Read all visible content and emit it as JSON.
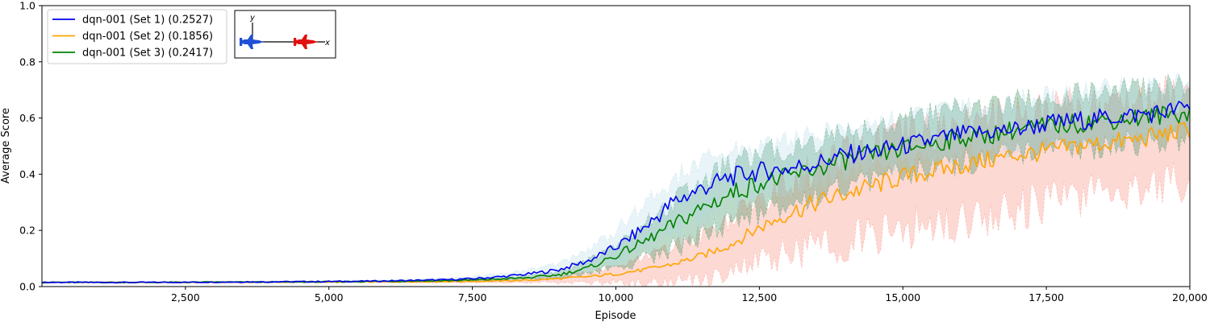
{
  "chart_data": {
    "type": "line",
    "title": "",
    "xlabel": "Episode",
    "ylabel": "Average Score",
    "xlim": [
      0,
      20000
    ],
    "ylim": [
      0,
      1.0
    ],
    "x_ticks": [
      2500,
      5000,
      7500,
      10000,
      12500,
      15000,
      17500,
      20000
    ],
    "x_tick_labels": [
      "2,500",
      "5,000",
      "7,500",
      "10,000",
      "12,500",
      "15,000",
      "17,500",
      "20,000"
    ],
    "y_ticks": [
      0.0,
      0.2,
      0.4,
      0.6,
      0.8,
      1.0
    ],
    "y_tick_labels": [
      "0.0",
      "0.2",
      "0.4",
      "0.6",
      "0.8",
      "1.0"
    ],
    "grid": false,
    "legend_position": "top-left",
    "x": [
      0,
      1000,
      2000,
      3000,
      4000,
      5000,
      6000,
      7000,
      7500,
      8000,
      8500,
      9000,
      9500,
      10000,
      10500,
      11000,
      11500,
      12000,
      12500,
      13000,
      13500,
      14000,
      14500,
      15000,
      15500,
      16000,
      16500,
      17000,
      17500,
      18000,
      18500,
      19000,
      19500,
      20000
    ],
    "series": [
      {
        "name": "dqn-001 (Set 1) (0.2527)",
        "color": "#0000ee",
        "band_color": "#add8e6",
        "values": [
          0.015,
          0.015,
          0.015,
          0.016,
          0.017,
          0.018,
          0.02,
          0.024,
          0.028,
          0.035,
          0.045,
          0.06,
          0.09,
          0.14,
          0.21,
          0.3,
          0.35,
          0.39,
          0.41,
          0.42,
          0.44,
          0.47,
          0.48,
          0.5,
          0.52,
          0.54,
          0.55,
          0.56,
          0.58,
          0.59,
          0.6,
          0.61,
          0.62,
          0.64
        ],
        "band_low": [
          0.013,
          0.013,
          0.013,
          0.014,
          0.014,
          0.015,
          0.016,
          0.018,
          0.02,
          0.025,
          0.03,
          0.04,
          0.06,
          0.09,
          0.14,
          0.2,
          0.25,
          0.3,
          0.33,
          0.35,
          0.38,
          0.4,
          0.42,
          0.44,
          0.46,
          0.48,
          0.49,
          0.5,
          0.51,
          0.52,
          0.53,
          0.53,
          0.54,
          0.56
        ],
        "band_high": [
          0.017,
          0.017,
          0.017,
          0.018,
          0.02,
          0.021,
          0.024,
          0.03,
          0.036,
          0.045,
          0.06,
          0.08,
          0.13,
          0.2,
          0.29,
          0.38,
          0.44,
          0.48,
          0.5,
          0.52,
          0.54,
          0.56,
          0.58,
          0.6,
          0.62,
          0.64,
          0.65,
          0.66,
          0.68,
          0.69,
          0.7,
          0.71,
          0.72,
          0.73
        ]
      },
      {
        "name": "dqn-001 (Set 2) (0.1856)",
        "color": "#ffa500",
        "band_color": "#fa8072",
        "values": [
          0.015,
          0.015,
          0.015,
          0.015,
          0.016,
          0.016,
          0.017,
          0.018,
          0.019,
          0.02,
          0.023,
          0.028,
          0.035,
          0.045,
          0.06,
          0.08,
          0.11,
          0.15,
          0.21,
          0.26,
          0.3,
          0.33,
          0.36,
          0.39,
          0.41,
          0.43,
          0.45,
          0.47,
          0.48,
          0.5,
          0.51,
          0.52,
          0.54,
          0.56
        ],
        "band_low": [
          0.014,
          0.014,
          0.014,
          0.014,
          0.014,
          0.014,
          0.014,
          0.014,
          0.014,
          0.014,
          0.014,
          0.014,
          0.014,
          0.014,
          0.014,
          0.014,
          0.03,
          0.06,
          0.09,
          0.12,
          0.14,
          0.16,
          0.18,
          0.2,
          0.22,
          0.24,
          0.26,
          0.28,
          0.3,
          0.32,
          0.34,
          0.35,
          0.37,
          0.38
        ],
        "band_high": [
          0.016,
          0.016,
          0.016,
          0.016,
          0.018,
          0.018,
          0.02,
          0.022,
          0.024,
          0.026,
          0.03,
          0.038,
          0.05,
          0.07,
          0.1,
          0.14,
          0.19,
          0.24,
          0.31,
          0.37,
          0.42,
          0.46,
          0.5,
          0.53,
          0.55,
          0.57,
          0.59,
          0.61,
          0.62,
          0.64,
          0.65,
          0.66,
          0.68,
          0.7
        ]
      },
      {
        "name": "dqn-001 (Set 3) (0.2417)",
        "color": "#008000",
        "band_color": "#2e8b57",
        "values": [
          0.015,
          0.015,
          0.015,
          0.016,
          0.016,
          0.017,
          0.019,
          0.021,
          0.023,
          0.027,
          0.032,
          0.042,
          0.065,
          0.11,
          0.16,
          0.22,
          0.28,
          0.33,
          0.37,
          0.39,
          0.42,
          0.45,
          0.47,
          0.49,
          0.51,
          0.53,
          0.54,
          0.56,
          0.57,
          0.58,
          0.59,
          0.6,
          0.61,
          0.62
        ],
        "band_low": [
          0.014,
          0.014,
          0.014,
          0.015,
          0.015,
          0.016,
          0.017,
          0.019,
          0.02,
          0.023,
          0.026,
          0.032,
          0.045,
          0.07,
          0.1,
          0.14,
          0.18,
          0.23,
          0.27,
          0.3,
          0.33,
          0.36,
          0.38,
          0.4,
          0.42,
          0.44,
          0.45,
          0.47,
          0.48,
          0.49,
          0.5,
          0.51,
          0.52,
          0.53
        ],
        "band_high": [
          0.016,
          0.016,
          0.016,
          0.017,
          0.017,
          0.018,
          0.021,
          0.024,
          0.027,
          0.032,
          0.04,
          0.055,
          0.09,
          0.15,
          0.22,
          0.3,
          0.37,
          0.43,
          0.47,
          0.49,
          0.52,
          0.55,
          0.57,
          0.59,
          0.61,
          0.63,
          0.64,
          0.66,
          0.67,
          0.68,
          0.69,
          0.7,
          0.71,
          0.72
        ]
      }
    ]
  },
  "inset": {
    "y_axis_label": "y",
    "x_axis_label": "x",
    "left_plane_icon": "blue-jet-icon",
    "right_plane_icon": "red-jet-icon",
    "left_plane_color": "#1f4fd6",
    "right_plane_color": "#e01010"
  }
}
